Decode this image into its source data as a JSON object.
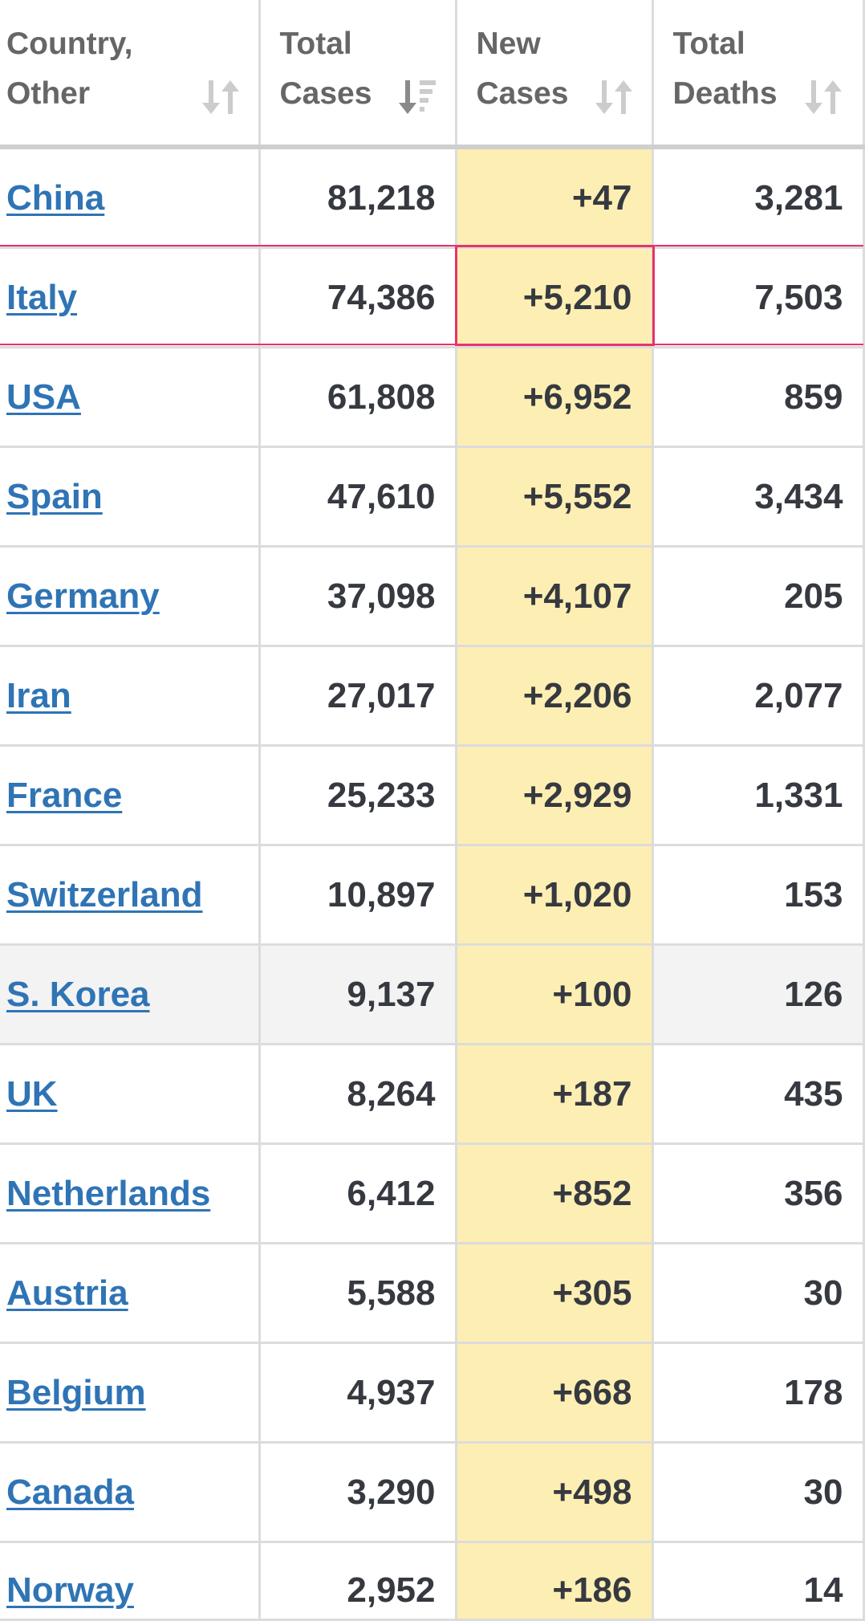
{
  "table": {
    "headers": [
      {
        "name": "country",
        "label": "Country,\nOther",
        "sort": "default"
      },
      {
        "name": "total_cases",
        "label": "Total\nCases",
        "sort": "descending"
      },
      {
        "name": "new_cases",
        "label": "New\nCases",
        "sort": "default"
      },
      {
        "name": "total_deaths",
        "label": "Total\nDeaths",
        "sort": "default"
      }
    ],
    "rows": [
      {
        "country": "China",
        "total_cases": "81,218",
        "new_cases": "+47",
        "total_deaths": "3,281"
      },
      {
        "country": "Italy",
        "total_cases": "74,386",
        "new_cases": "+5,210",
        "total_deaths": "7,503"
      },
      {
        "country": "USA",
        "total_cases": "61,808",
        "new_cases": "+6,952",
        "total_deaths": "859"
      },
      {
        "country": "Spain",
        "total_cases": "47,610",
        "new_cases": "+5,552",
        "total_deaths": "3,434"
      },
      {
        "country": "Germany",
        "total_cases": "37,098",
        "new_cases": "+4,107",
        "total_deaths": "205"
      },
      {
        "country": "Iran",
        "total_cases": "27,017",
        "new_cases": "+2,206",
        "total_deaths": "2,077"
      },
      {
        "country": "France",
        "total_cases": "25,233",
        "new_cases": "+2,929",
        "total_deaths": "1,331"
      },
      {
        "country": "Switzerland",
        "total_cases": "10,897",
        "new_cases": "+1,020",
        "total_deaths": "153"
      },
      {
        "country": "S. Korea",
        "total_cases": "9,137",
        "new_cases": "+100",
        "total_deaths": "126"
      },
      {
        "country": "UK",
        "total_cases": "8,264",
        "new_cases": "+187",
        "total_deaths": "435"
      },
      {
        "country": "Netherlands",
        "total_cases": "6,412",
        "new_cases": "+852",
        "total_deaths": "356"
      },
      {
        "country": "Austria",
        "total_cases": "5,588",
        "new_cases": "+305",
        "total_deaths": "30"
      },
      {
        "country": "Belgium",
        "total_cases": "4,937",
        "new_cases": "+668",
        "total_deaths": "178"
      },
      {
        "country": "Canada",
        "total_cases": "3,290",
        "new_cases": "+498",
        "total_deaths": "30"
      },
      {
        "country": "Norway",
        "total_cases": "2,952",
        "new_cases": "+186",
        "total_deaths": "14"
      }
    ]
  },
  "colors": {
    "link": "#2f74b5",
    "new_cases_bg": "#fdefb3",
    "annotation": "#e8336b",
    "header_text": "#666666",
    "cell_text": "#363940"
  }
}
